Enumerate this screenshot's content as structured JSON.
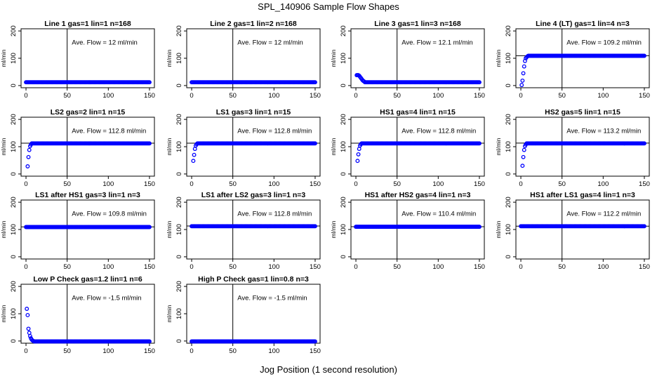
{
  "figure": {
    "title": "SPL_140906  Sample Flow Shapes",
    "xlabel": "Jog Position (1 second resolution)",
    "point_color": "#0000ff"
  },
  "chart_data": [
    {
      "type": "scatter",
      "title": "Line 1 gas=1 lin=1 n=168",
      "annotation": "Ave. Flow =  12  ml/min",
      "ylabel": "ml/min",
      "xlim": [
        0,
        150
      ],
      "ylim": [
        0,
        200
      ],
      "xticks": [
        0,
        50,
        100,
        150
      ],
      "yticks": [
        0,
        100,
        200
      ],
      "vline": 50,
      "hline": null,
      "x": [
        0,
        150
      ],
      "steady": 12,
      "ramp": []
    },
    {
      "type": "scatter",
      "title": "Line 2 gas=1 lin=2 n=168",
      "annotation": "Ave. Flow =  12  ml/min",
      "ylabel": "ml/min",
      "xlim": [
        0,
        150
      ],
      "ylim": [
        0,
        200
      ],
      "xticks": [
        0,
        50,
        100,
        150
      ],
      "yticks": [
        0,
        100,
        200
      ],
      "vline": 50,
      "hline": null,
      "x": [
        0,
        150
      ],
      "steady": 12,
      "ramp": []
    },
    {
      "type": "scatter",
      "title": "Line 3 gas=1 lin=3 n=168",
      "annotation": "Ave. Flow =  12.1  ml/min",
      "ylabel": "ml/min",
      "xlim": [
        0,
        150
      ],
      "ylim": [
        0,
        200
      ],
      "xticks": [
        0,
        50,
        100,
        150
      ],
      "yticks": [
        0,
        100,
        200
      ],
      "vline": 50,
      "hline": null,
      "x": [
        0,
        150
      ],
      "steady": 12,
      "ramp": [
        [
          1,
          38
        ],
        [
          2,
          38
        ],
        [
          3,
          38
        ],
        [
          4,
          36
        ],
        [
          5,
          32
        ],
        [
          6,
          28
        ],
        [
          7,
          24
        ],
        [
          8,
          20
        ],
        [
          9,
          17
        ],
        [
          10,
          15
        ]
      ]
    },
    {
      "type": "scatter",
      "title": "Line 4 (LT) gas=1 lin=4 n=3",
      "annotation": "Ave. Flow =  109.2  ml/min",
      "ylabel": "ml/min",
      "xlim": [
        0,
        150
      ],
      "ylim": [
        0,
        200
      ],
      "xticks": [
        0,
        50,
        100,
        150
      ],
      "yticks": [
        0,
        100,
        200
      ],
      "vline": 50,
      "hline": 109.2,
      "x": [
        0,
        150
      ],
      "steady": 109,
      "ramp": [
        [
          1,
          2
        ],
        [
          2,
          18
        ],
        [
          3,
          45
        ],
        [
          4,
          70
        ],
        [
          5,
          90
        ],
        [
          6,
          100
        ],
        [
          7,
          104
        ],
        [
          8,
          107
        ]
      ]
    },
    {
      "type": "scatter",
      "title": "LS2 gas=2 lin=1 n=15",
      "annotation": "Ave. Flow =  112.8  ml/min",
      "ylabel": "ml/min",
      "xlim": [
        0,
        150
      ],
      "ylim": [
        0,
        200
      ],
      "xticks": [
        0,
        50,
        100,
        150
      ],
      "yticks": [
        0,
        100,
        200
      ],
      "vline": 50,
      "hline": 112.8,
      "x": [
        0,
        150
      ],
      "steady": 112,
      "ramp": [
        [
          2,
          28
        ],
        [
          3,
          62
        ],
        [
          4,
          88
        ],
        [
          5,
          102
        ],
        [
          6,
          108
        ]
      ]
    },
    {
      "type": "scatter",
      "title": "LS1 gas=3 lin=1 n=15",
      "annotation": "Ave. Flow =  112.8  ml/min",
      "ylabel": "ml/min",
      "xlim": [
        0,
        150
      ],
      "ylim": [
        0,
        200
      ],
      "xticks": [
        0,
        50,
        100,
        150
      ],
      "yticks": [
        0,
        100,
        200
      ],
      "vline": 50,
      "hline": 112.8,
      "x": [
        0,
        150
      ],
      "steady": 112,
      "ramp": [
        [
          2,
          48
        ],
        [
          3,
          70
        ],
        [
          4,
          92
        ],
        [
          5,
          104
        ],
        [
          6,
          109
        ]
      ]
    },
    {
      "type": "scatter",
      "title": "HS1 gas=4 lin=1 n=15",
      "annotation": "Ave. Flow =  112.8  ml/min",
      "ylabel": "ml/min",
      "xlim": [
        0,
        150
      ],
      "ylim": [
        0,
        200
      ],
      "xticks": [
        0,
        50,
        100,
        150
      ],
      "yticks": [
        0,
        100,
        200
      ],
      "vline": 50,
      "hline": 112.8,
      "x": [
        0,
        150
      ],
      "steady": 112,
      "ramp": [
        [
          2,
          48
        ],
        [
          3,
          72
        ],
        [
          4,
          92
        ],
        [
          5,
          104
        ],
        [
          6,
          109
        ]
      ]
    },
    {
      "type": "scatter",
      "title": "HS2 gas=5 lin=1 n=15",
      "annotation": "Ave. Flow =  113.2  ml/min",
      "ylabel": "ml/min",
      "xlim": [
        0,
        150
      ],
      "ylim": [
        0,
        200
      ],
      "xticks": [
        0,
        50,
        100,
        150
      ],
      "yticks": [
        0,
        100,
        200
      ],
      "vline": 50,
      "hline": 113.2,
      "x": [
        0,
        150
      ],
      "steady": 112,
      "ramp": [
        [
          2,
          30
        ],
        [
          3,
          62
        ],
        [
          4,
          88
        ],
        [
          5,
          102
        ],
        [
          6,
          108
        ]
      ]
    },
    {
      "type": "scatter",
      "title": "LS1 after HS1 gas=3 lin=1 n=3",
      "annotation": "Ave. Flow =  109.8  ml/min",
      "ylabel": "ml/min",
      "xlim": [
        0,
        150
      ],
      "ylim": [
        0,
        200
      ],
      "xticks": [
        0,
        50,
        100,
        150
      ],
      "yticks": [
        0,
        100,
        200
      ],
      "vline": 50,
      "hline": 109.8,
      "x": [
        0,
        150
      ],
      "steady": 109,
      "ramp": []
    },
    {
      "type": "scatter",
      "title": "LS1 after LS2 gas=3 lin=1 n=3",
      "annotation": "Ave. Flow =  112.8  ml/min",
      "ylabel": "ml/min",
      "xlim": [
        0,
        150
      ],
      "ylim": [
        0,
        200
      ],
      "xticks": [
        0,
        50,
        100,
        150
      ],
      "yticks": [
        0,
        100,
        200
      ],
      "vline": 50,
      "hline": 112.8,
      "x": [
        0,
        150
      ],
      "steady": 112,
      "ramp": []
    },
    {
      "type": "scatter",
      "title": "HS1 after HS2 gas=4 lin=1 n=3",
      "annotation": "Ave. Flow =  110.4  ml/min",
      "ylabel": "ml/min",
      "xlim": [
        0,
        150
      ],
      "ylim": [
        0,
        200
      ],
      "xticks": [
        0,
        50,
        100,
        150
      ],
      "yticks": [
        0,
        100,
        200
      ],
      "vline": 50,
      "hline": 110.4,
      "x": [
        0,
        150
      ],
      "steady": 110,
      "ramp": []
    },
    {
      "type": "scatter",
      "title": "HS1 after LS1 gas=4 lin=1 n=3",
      "annotation": "Ave. Flow =  112.2  ml/min",
      "ylabel": "ml/min",
      "xlim": [
        0,
        150
      ],
      "ylim": [
        0,
        200
      ],
      "xticks": [
        0,
        50,
        100,
        150
      ],
      "yticks": [
        0,
        100,
        200
      ],
      "vline": 50,
      "hline": 112.2,
      "x": [
        0,
        150
      ],
      "steady": 112,
      "ramp": []
    },
    {
      "type": "scatter",
      "title": "Low P Check gas=1.2 lin=1 n=6",
      "annotation": "Ave. Flow =  -1.5  ml/min",
      "ylabel": "ml/min",
      "xlim": [
        0,
        150
      ],
      "ylim": [
        0,
        200
      ],
      "xticks": [
        0,
        50,
        100,
        150
      ],
      "yticks": [
        0,
        100,
        200
      ],
      "vline": 50,
      "hline": null,
      "x": [
        0,
        150
      ],
      "steady": -1.5,
      "ramp": [
        [
          1,
          118
        ],
        [
          2,
          95
        ],
        [
          3,
          45
        ],
        [
          4,
          30
        ],
        [
          5,
          18
        ],
        [
          6,
          10
        ],
        [
          7,
          5
        ],
        [
          8,
          2
        ],
        [
          9,
          0
        ]
      ]
    },
    {
      "type": "scatter",
      "title": "High P Check gas=1 lin=0.8 n=3",
      "annotation": "Ave. Flow =  -1.5  ml/min",
      "ylabel": "ml/min",
      "xlim": [
        0,
        150
      ],
      "ylim": [
        0,
        200
      ],
      "xticks": [
        0,
        50,
        100,
        150
      ],
      "yticks": [
        0,
        100,
        200
      ],
      "vline": 50,
      "hline": null,
      "x": [
        0,
        150
      ],
      "steady": -1.5,
      "ramp": []
    }
  ]
}
